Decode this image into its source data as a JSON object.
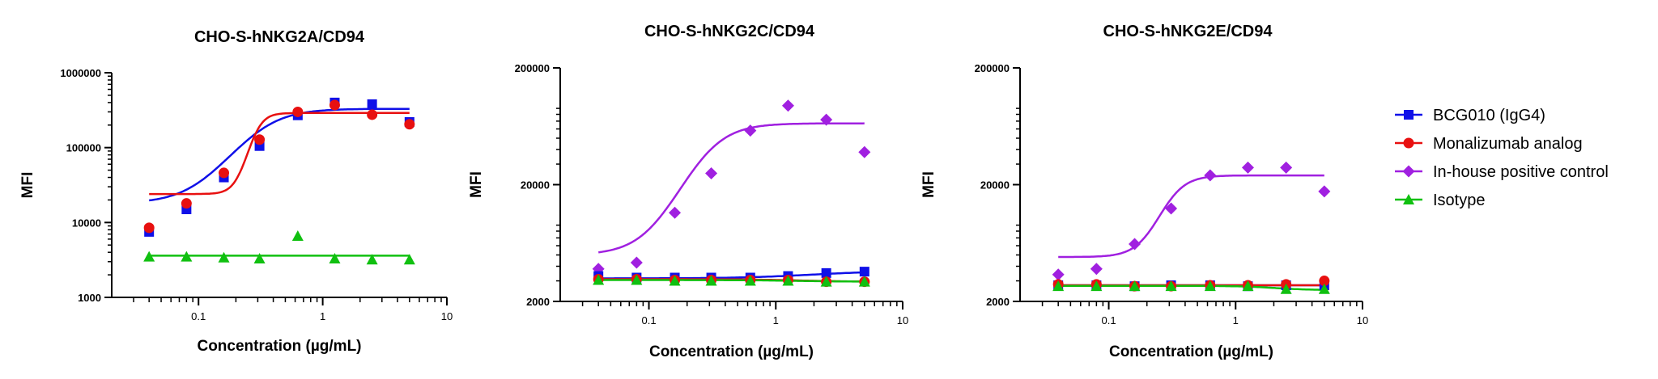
{
  "legend": [
    {
      "name": "BCG010 (IgG4)",
      "color": "#1010e8",
      "marker": "square"
    },
    {
      "name": "Monalizumab analog",
      "color": "#e81010",
      "marker": "circle"
    },
    {
      "name": "In-house positive control",
      "color": "#a020e0",
      "marker": "diamond"
    },
    {
      "name": "Isotype",
      "color": "#10c010",
      "marker": "triangle"
    }
  ],
  "chart_data": [
    {
      "type": "scatter",
      "title": "CHO-S-hNKG2A/CD94",
      "xlabel": "Concentration (µg/mL)",
      "ylabel": "MFI",
      "xscale": "log",
      "yscale": "log",
      "xlim": [
        0.02,
        10
      ],
      "ylim": [
        1000,
        1000000
      ],
      "xticks": [
        {
          "v": 0.1,
          "label": "0.1"
        },
        {
          "v": 1,
          "label": "1"
        },
        {
          "v": 10,
          "label": "10"
        }
      ],
      "yticks": [
        {
          "v": 1000,
          "label": "1000"
        },
        {
          "v": 10000,
          "label": "10000"
        },
        {
          "v": 100000,
          "label": "100000"
        },
        {
          "v": 1000000,
          "label": "1000000"
        }
      ],
      "series": [
        {
          "name": "BCG010 (IgG4)",
          "x": [
            0.04,
            0.08,
            0.16,
            0.31,
            0.63,
            1.25,
            2.5,
            5
          ],
          "y": [
            7500,
            15000,
            40000,
            105000,
            270000,
            400000,
            380000,
            220000
          ],
          "fit": {
            "bottom": 18000,
            "top": 330000,
            "ec50": 0.32,
            "hill": 2.5
          }
        },
        {
          "name": "Monalizumab analog",
          "x": [
            0.04,
            0.08,
            0.16,
            0.31,
            0.63,
            1.25,
            2.5,
            5
          ],
          "y": [
            8500,
            18000,
            46000,
            128000,
            300000,
            370000,
            275000,
            205000
          ],
          "fit": {
            "bottom": 24000,
            "top": 290000,
            "ec50": 0.29,
            "hill": 8
          }
        },
        {
          "name": "Isotype",
          "x": [
            0.04,
            0.08,
            0.16,
            0.31,
            0.63,
            1.25,
            2.5,
            5
          ],
          "y": [
            3500,
            3500,
            3400,
            3300,
            6600,
            3300,
            3200,
            3200
          ],
          "fit": {
            "bottom": 3600,
            "top": 3600,
            "ec50": 1,
            "hill": 1
          }
        }
      ]
    },
    {
      "type": "scatter",
      "title": "CHO-S-hNKG2C/CD94",
      "xlabel": "Concentration (µg/mL)",
      "ylabel": "MFI",
      "xscale": "log",
      "yscale": "log",
      "xlim": [
        0.02,
        10
      ],
      "ylim": [
        2000,
        200000
      ],
      "xticks": [
        {
          "v": 0.1,
          "label": "0.1"
        },
        {
          "v": 1,
          "label": "1"
        },
        {
          "v": 10,
          "label": "10"
        }
      ],
      "yticks": [
        {
          "v": 2000,
          "label": "2000"
        },
        {
          "v": 20000,
          "label": "20000"
        },
        {
          "v": 200000,
          "label": "200000"
        }
      ],
      "series": [
        {
          "name": "In-house positive control",
          "x": [
            0.04,
            0.08,
            0.16,
            0.31,
            0.63,
            1.25,
            2.5,
            5
          ],
          "y": [
            3800,
            4300,
            11500,
            25000,
            58000,
            95000,
            72000,
            38000
          ],
          "fit": {
            "bottom": 5000,
            "top": 67000,
            "ec50": 0.28,
            "hill": 2.8
          }
        },
        {
          "name": "BCG010 (IgG4)",
          "x": [
            0.04,
            0.08,
            0.16,
            0.31,
            0.63,
            1.25,
            2.5,
            5
          ],
          "y": [
            3300,
            3200,
            3200,
            3200,
            3200,
            3300,
            3500,
            3600
          ],
          "fit": {
            "bottom": 3150,
            "top": 3650,
            "ec50": 2,
            "hill": 1.5
          }
        },
        {
          "name": "Monalizumab analog",
          "x": [
            0.04,
            0.08,
            0.16,
            0.31,
            0.63,
            1.25,
            2.5,
            5
          ],
          "y": [
            3100,
            3100,
            3050,
            3050,
            3050,
            3050,
            2950,
            2950
          ],
          "fit": {
            "bottom": 3100,
            "top": 2950,
            "ec50": 1.5,
            "hill": 2
          }
        },
        {
          "name": "Isotype",
          "x": [
            0.04,
            0.08,
            0.16,
            0.31,
            0.63,
            1.25,
            2.5,
            5
          ],
          "y": [
            3050,
            3050,
            3000,
            3000,
            3000,
            3000,
            2950,
            2950
          ],
          "fit": {
            "bottom": 3050,
            "top": 2950,
            "ec50": 1.5,
            "hill": 2
          }
        }
      ]
    },
    {
      "type": "scatter",
      "title": "CHO-S-hNKG2E/CD94",
      "xlabel": "Concentration (µg/mL)",
      "ylabel": "MFI",
      "xscale": "log",
      "yscale": "log",
      "xlim": [
        0.02,
        10
      ],
      "ylim": [
        2000,
        200000
      ],
      "xticks": [
        {
          "v": 0.1,
          "label": "0.1"
        },
        {
          "v": 1,
          "label": "1"
        },
        {
          "v": 10,
          "label": "10"
        }
      ],
      "yticks": [
        {
          "v": 2000,
          "label": "2000"
        },
        {
          "v": 20000,
          "label": "20000"
        },
        {
          "v": 200000,
          "label": "200000"
        }
      ],
      "series": [
        {
          "name": "In-house positive control",
          "x": [
            0.04,
            0.08,
            0.16,
            0.31,
            0.63,
            1.25,
            2.5,
            5
          ],
          "y": [
            3400,
            3800,
            6200,
            12500,
            24000,
            28000,
            28000,
            17500
          ],
          "fit": {
            "bottom": 4800,
            "top": 24000,
            "ec50": 0.3,
            "hill": 4.5
          }
        },
        {
          "name": "BCG010 (IgG4)",
          "x": [
            0.04,
            0.08,
            0.16,
            0.31,
            0.63,
            1.25,
            2.5,
            5
          ],
          "y": [
            2750,
            2750,
            2700,
            2750,
            2750,
            2700,
            2750,
            2750
          ],
          "fit": {
            "bottom": 2750,
            "top": 2750,
            "ec50": 1,
            "hill": 1
          }
        },
        {
          "name": "Monalizumab analog",
          "x": [
            0.04,
            0.08,
            0.16,
            0.31,
            0.63,
            1.25,
            2.5,
            5
          ],
          "y": [
            2800,
            2800,
            2700,
            2700,
            2750,
            2750,
            2800,
            3000
          ],
          "fit": {
            "bottom": 2750,
            "top": 2750,
            "ec50": 1,
            "hill": 1
          }
        },
        {
          "name": "Isotype",
          "x": [
            0.04,
            0.08,
            0.16,
            0.31,
            0.63,
            1.25,
            2.5,
            5
          ],
          "y": [
            2700,
            2700,
            2700,
            2700,
            2700,
            2700,
            2550,
            2550
          ],
          "fit": {
            "bottom": 2720,
            "top": 2500,
            "ec50": 2,
            "hill": 3
          }
        }
      ]
    }
  ]
}
